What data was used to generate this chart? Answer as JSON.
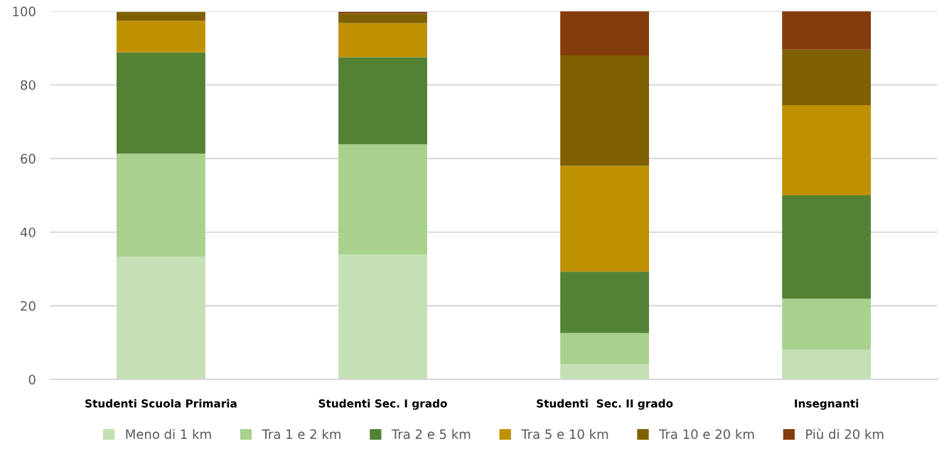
{
  "chart_data": {
    "type": "bar",
    "stacked": true,
    "categories": [
      "Studenti Scuola Primaria",
      "Studenti Sec. I grado",
      "Studenti  Sec. II grado",
      "Insegnanti"
    ],
    "series": [
      {
        "name": "Meno di 1 km",
        "color": "#c5e0b4",
        "values": [
          33.4,
          33.9,
          4.1,
          8.0
        ]
      },
      {
        "name": "Tra 1 e 2 km",
        "color": "#a9d18e",
        "values": [
          27.9,
          30.0,
          8.5,
          13.9
        ]
      },
      {
        "name": "Tra 2 e 5 km",
        "color": "#548235",
        "values": [
          27.5,
          23.6,
          16.7,
          28.1
        ]
      },
      {
        "name": "Tra 5 e 10 km",
        "color": "#bf9000",
        "values": [
          8.6,
          9.3,
          28.7,
          24.5
        ]
      },
      {
        "name": "Tra 10 e 20 km",
        "color": "#7f6000",
        "values": [
          2.4,
          2.5,
          30.0,
          15.1
        ]
      },
      {
        "name": "Più di 20 km",
        "color": "#843c0c",
        "values": [
          0,
          0.5,
          12.0,
          10.4
        ]
      }
    ],
    "ylim": [
      0,
      100
    ],
    "yticks": [
      0,
      20,
      40,
      60,
      80,
      100
    ],
    "grid": "y",
    "legend": "bottom"
  }
}
